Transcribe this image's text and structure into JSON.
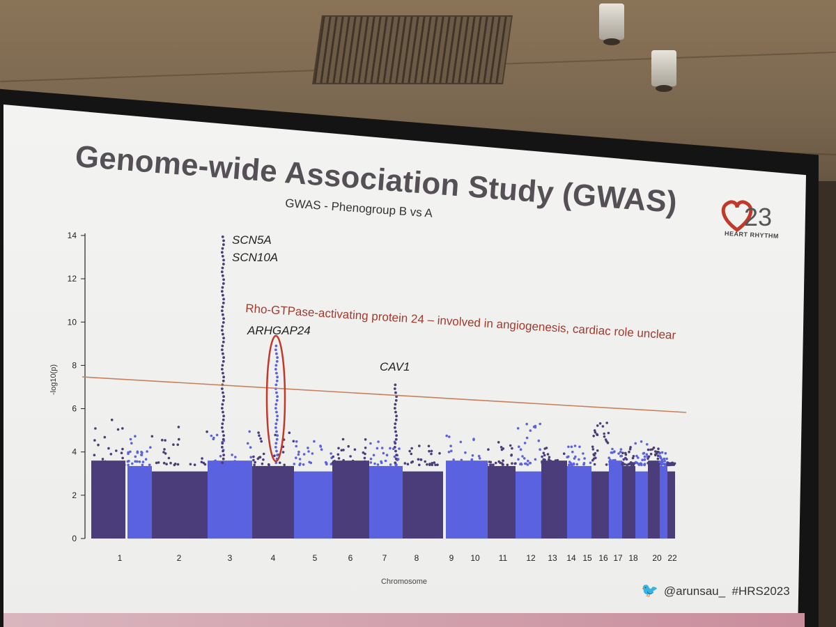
{
  "slide": {
    "title": "Genome-wide Association Study (GWAS)",
    "subtitle": "GWAS - Phenogroup B vs A",
    "logo_number": "23",
    "logo_caption": "HEART RHYTHM",
    "twitter_handle": "@arunsau_",
    "hashtag": "#HRS2023",
    "annotation": "Rho-GTPase-activating protein 24 – involved in angiogenesis, cardiac role unclear"
  },
  "chart_data": {
    "type": "scatter",
    "title": "GWAS - Phenogroup B vs A",
    "xlabel": "Chromosome",
    "ylabel": "-log10(p)",
    "ylim": [
      0,
      14
    ],
    "yticks": [
      0,
      2,
      4,
      6,
      8,
      10,
      12,
      14
    ],
    "x_tick_labels": [
      "1",
      "2",
      "3",
      "4",
      "5",
      "6",
      "7",
      "8",
      "9",
      "10",
      "11",
      "12",
      "13",
      "14",
      "15",
      "16",
      "17",
      "18",
      "20",
      "22"
    ],
    "significance_threshold": 7.3,
    "colors": {
      "dark": "#4a3d7a",
      "light": "#5b62e0",
      "threshold": "#c8805a",
      "annotation": "#a33a2e",
      "highlight_ring": "#c0392b"
    },
    "gene_labels": [
      {
        "label": "SCN5A",
        "chromosome": "3",
        "peak": 14
      },
      {
        "label": "SCN10A",
        "chromosome": "3",
        "peak": 13
      },
      {
        "label": "ARHGAP24",
        "chromosome": "4",
        "peak": 9
      },
      {
        "label": "CAV1",
        "chromosome": "7",
        "peak": 7.1
      }
    ]
  }
}
